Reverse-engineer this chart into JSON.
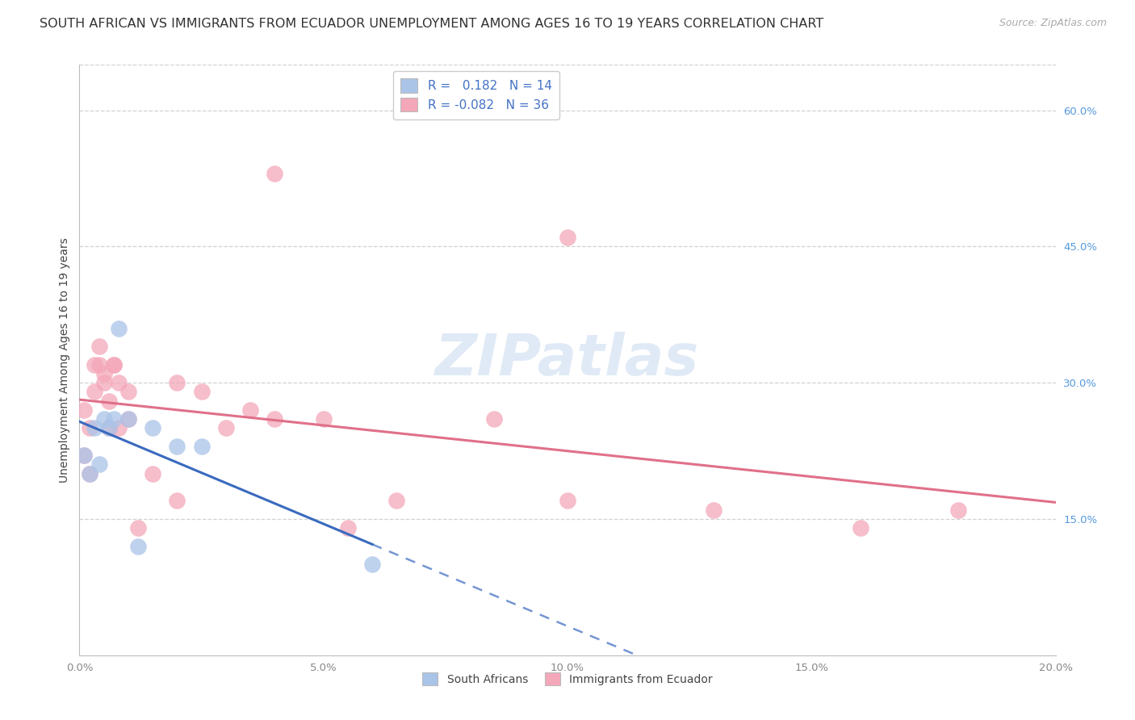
{
  "title": "SOUTH AFRICAN VS IMMIGRANTS FROM ECUADOR UNEMPLOYMENT AMONG AGES 16 TO 19 YEARS CORRELATION CHART",
  "source": "Source: ZipAtlas.com",
  "ylabel": "Unemployment Among Ages 16 to 19 years",
  "xlabel_ticks": [
    "0.0%",
    "5.0%",
    "10.0%",
    "15.0%",
    "20.0%"
  ],
  "xlabel_vals": [
    0.0,
    0.05,
    0.1,
    0.15,
    0.2
  ],
  "ylabel_ticks_right": [
    "60.0%",
    "45.0%",
    "30.0%",
    "15.0%"
  ],
  "ylabel_vals_right": [
    0.6,
    0.45,
    0.3,
    0.15
  ],
  "xlim": [
    0.0,
    0.2
  ],
  "ylim": [
    0.0,
    0.65
  ],
  "r_sa": 0.182,
  "n_sa": 14,
  "r_ec": -0.082,
  "n_ec": 36,
  "sa_color": "#aac4e8",
  "ec_color": "#f4a7b9",
  "sa_line_color": "#3a6abf",
  "ec_line_color": "#e0708a",
  "watermark_color": "#c8daf0",
  "south_africans_x": [
    0.001,
    0.002,
    0.003,
    0.004,
    0.005,
    0.006,
    0.007,
    0.008,
    0.01,
    0.012,
    0.015,
    0.02,
    0.025,
    0.06
  ],
  "south_africans_y": [
    0.22,
    0.2,
    0.25,
    0.21,
    0.26,
    0.25,
    0.26,
    0.36,
    0.26,
    0.12,
    0.25,
    0.23,
    0.23,
    0.1
  ],
  "ecuador_x": [
    0.001,
    0.001,
    0.002,
    0.002,
    0.003,
    0.003,
    0.004,
    0.004,
    0.005,
    0.005,
    0.006,
    0.006,
    0.007,
    0.007,
    0.008,
    0.008,
    0.01,
    0.01,
    0.012,
    0.015,
    0.02,
    0.02,
    0.025,
    0.03,
    0.035,
    0.04,
    0.04,
    0.05,
    0.055,
    0.065,
    0.085,
    0.1,
    0.1,
    0.13,
    0.16,
    0.18
  ],
  "ecuador_y": [
    0.22,
    0.27,
    0.2,
    0.25,
    0.29,
    0.32,
    0.32,
    0.34,
    0.31,
    0.3,
    0.28,
    0.25,
    0.32,
    0.32,
    0.3,
    0.25,
    0.26,
    0.29,
    0.14,
    0.2,
    0.3,
    0.17,
    0.29,
    0.25,
    0.27,
    0.26,
    0.53,
    0.26,
    0.14,
    0.17,
    0.26,
    0.46,
    0.17,
    0.16,
    0.14,
    0.16
  ],
  "background_color": "#ffffff",
  "grid_color": "#cccccc",
  "title_fontsize": 11.5,
  "axis_label_fontsize": 10,
  "tick_fontsize": 9.5,
  "legend_fontsize": 11
}
